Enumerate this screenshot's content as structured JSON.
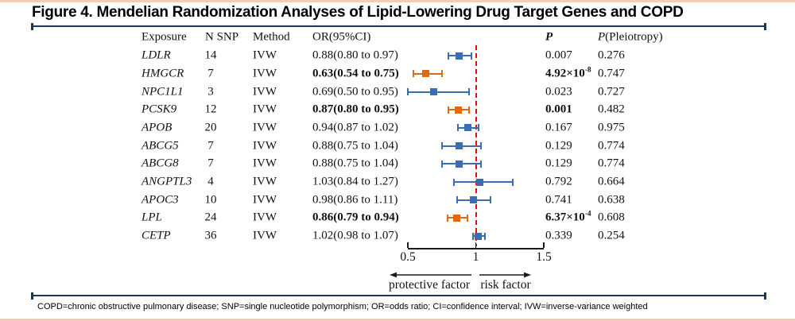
{
  "title": "Figure 4. Mendelian Randomization Analyses of Lipid-Lowering Drug Target Genes and COPD",
  "footer": "COPD=chronic obstructive pulmonary disease; SNP=single nucleotide polymorphism; OR=odds ratio; CI=confidence interval; IVW=inverse-variance weighted",
  "columns": {
    "exposure": "Exposure",
    "n_snp": "N SNP",
    "method": "Method",
    "or_ci": "OR(95%CI)",
    "p": "P",
    "p_pleio_italic": "P",
    "p_pleio_rest": "(Pleiotropy)"
  },
  "colors": {
    "significant": "#e06a10",
    "nonsignificant": "#3c6cb4",
    "ref_line": "#ff0000",
    "bracket": "#1e3557",
    "page_border": "#f6ccb2"
  },
  "chart_data": {
    "type": "forest",
    "xlim": [
      0.5,
      1.5
    ],
    "ref_line": 1,
    "axis": {
      "ticks": [
        0.5,
        1,
        1.5
      ],
      "tick_labels": [
        "0.5",
        "1",
        "1.5"
      ],
      "left_label": "protective factor",
      "right_label": "risk factor"
    },
    "rows": [
      {
        "exposure": "LDLR",
        "n_snp": "14",
        "method": "IVW",
        "or": 0.88,
        "ci_low": 0.8,
        "ci_high": 0.97,
        "or_text": "0.88(0.80 to 0.97)",
        "p": "0.007",
        "p_pleiotropy": "0.276",
        "significant": false
      },
      {
        "exposure": "HMGCR",
        "n_snp": "7",
        "method": "IVW",
        "or": 0.63,
        "ci_low": 0.54,
        "ci_high": 0.75,
        "or_text": "0.63(0.54 to 0.75)",
        "p": "4.92×10^-8",
        "p_pleiotropy": "0.747",
        "significant": true
      },
      {
        "exposure": "NPC1L1",
        "n_snp": "3",
        "method": "IVW",
        "or": 0.69,
        "ci_low": 0.5,
        "ci_high": 0.95,
        "or_text": "0.69(0.50 to 0.95)",
        "p": "0.023",
        "p_pleiotropy": "0.727",
        "significant": false
      },
      {
        "exposure": "PCSK9",
        "n_snp": "12",
        "method": "IVW",
        "or": 0.87,
        "ci_low": 0.8,
        "ci_high": 0.95,
        "or_text": "0.87(0.80 to 0.95)",
        "p": "0.001",
        "p_pleiotropy": "0.482",
        "significant": true
      },
      {
        "exposure": "APOB",
        "n_snp": "20",
        "method": "IVW",
        "or": 0.94,
        "ci_low": 0.87,
        "ci_high": 1.02,
        "or_text": "0.94(0.87 to 1.02)",
        "p": "0.167",
        "p_pleiotropy": "0.975",
        "significant": false
      },
      {
        "exposure": "ABCG5",
        "n_snp": "7",
        "method": "IVW",
        "or": 0.88,
        "ci_low": 0.75,
        "ci_high": 1.04,
        "or_text": "0.88(0.75 to 1.04)",
        "p": "0.129",
        "p_pleiotropy": "0.774",
        "significant": false
      },
      {
        "exposure": "ABCG8",
        "n_snp": "7",
        "method": "IVW",
        "or": 0.88,
        "ci_low": 0.75,
        "ci_high": 1.04,
        "or_text": "0.88(0.75 to 1.04)",
        "p": "0.129",
        "p_pleiotropy": "0.774",
        "significant": false
      },
      {
        "exposure": "ANGPTL3",
        "n_snp": "4",
        "method": "IVW",
        "or": 1.03,
        "ci_low": 0.84,
        "ci_high": 1.27,
        "or_text": "1.03(0.84 to 1.27)",
        "p": "0.792",
        "p_pleiotropy": "0.664",
        "significant": false
      },
      {
        "exposure": "APOC3",
        "n_snp": "10",
        "method": "IVW",
        "or": 0.98,
        "ci_low": 0.86,
        "ci_high": 1.11,
        "or_text": "0.98(0.86 to 1.11)",
        "p": "0.741",
        "p_pleiotropy": "0.638",
        "significant": false
      },
      {
        "exposure": "LPL",
        "n_snp": "24",
        "method": "IVW",
        "or": 0.86,
        "ci_low": 0.79,
        "ci_high": 0.94,
        "or_text": "0.86(0.79 to 0.94)",
        "p": "6.37×10^-4",
        "p_pleiotropy": "0.608",
        "significant": true
      },
      {
        "exposure": "CETP",
        "n_snp": "36",
        "method": "IVW",
        "or": 1.02,
        "ci_low": 0.98,
        "ci_high": 1.07,
        "or_text": "1.02(0.98 to 1.07)",
        "p": "0.339",
        "p_pleiotropy": "0.254",
        "significant": false
      }
    ]
  }
}
